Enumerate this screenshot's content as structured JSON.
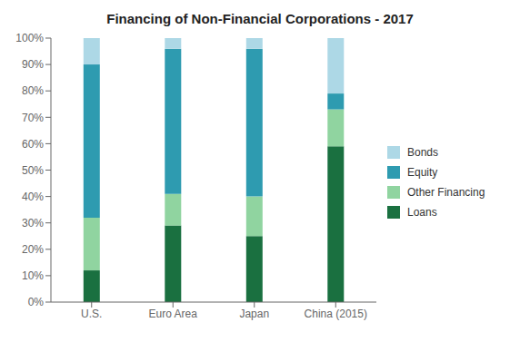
{
  "chart_data": {
    "type": "bar",
    "stacked": true,
    "title": "Financing of Non-Financial Corporations - 2017",
    "categories": [
      "U.S.",
      "Euro Area",
      "Japan",
      "China (2015)"
    ],
    "series": [
      {
        "name": "Loans",
        "color": "#1a7040",
        "values": [
          12,
          29,
          25,
          59
        ]
      },
      {
        "name": "Other Financing",
        "color": "#90d4a0",
        "values": [
          20,
          12,
          15,
          14
        ]
      },
      {
        "name": "Equity",
        "color": "#2e9bb0",
        "values": [
          58,
          55,
          56,
          6
        ]
      },
      {
        "name": "Bonds",
        "color": "#add8e6",
        "values": [
          10,
          4,
          4,
          21
        ]
      }
    ],
    "ylim": [
      0,
      100
    ],
    "yticks": [
      {
        "value": 0,
        "label": "0%"
      },
      {
        "value": 10,
        "label": "10%"
      },
      {
        "value": 20,
        "label": "20%"
      },
      {
        "value": 30,
        "label": "30%"
      },
      {
        "value": 40,
        "label": "40%"
      },
      {
        "value": 50,
        "label": "50%"
      },
      {
        "value": 60,
        "label": "60%"
      },
      {
        "value": 70,
        "label": "70%"
      },
      {
        "value": 80,
        "label": "80%"
      },
      {
        "value": 90,
        "label": "90%"
      },
      {
        "value": 100,
        "label": "100%"
      }
    ],
    "grid": false,
    "legend": "right"
  }
}
